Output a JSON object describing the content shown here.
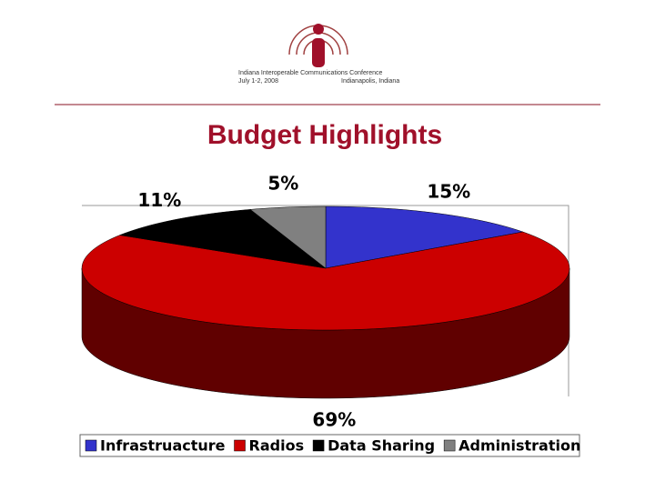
{
  "header": {
    "conference": "Indiana Interoperable Communications Conference",
    "dates": "July 1-2, 2008",
    "place": "Indianapolis, Indiana"
  },
  "chart_data": {
    "type": "pie",
    "title": "Budget Highlights",
    "categories": [
      "Infrastruacture",
      "Radios",
      "Data Sharing",
      "Administration"
    ],
    "values": [
      15,
      69,
      11,
      5
    ],
    "value_labels": [
      "15%",
      "69%",
      "11%",
      "5%"
    ],
    "colors": [
      "#3333cc",
      "#cc0000",
      "#000000",
      "#808080"
    ],
    "side_colors": [
      "#1c1c70",
      "#600000",
      "#000000",
      "#404040"
    ],
    "legend": "bottom"
  }
}
